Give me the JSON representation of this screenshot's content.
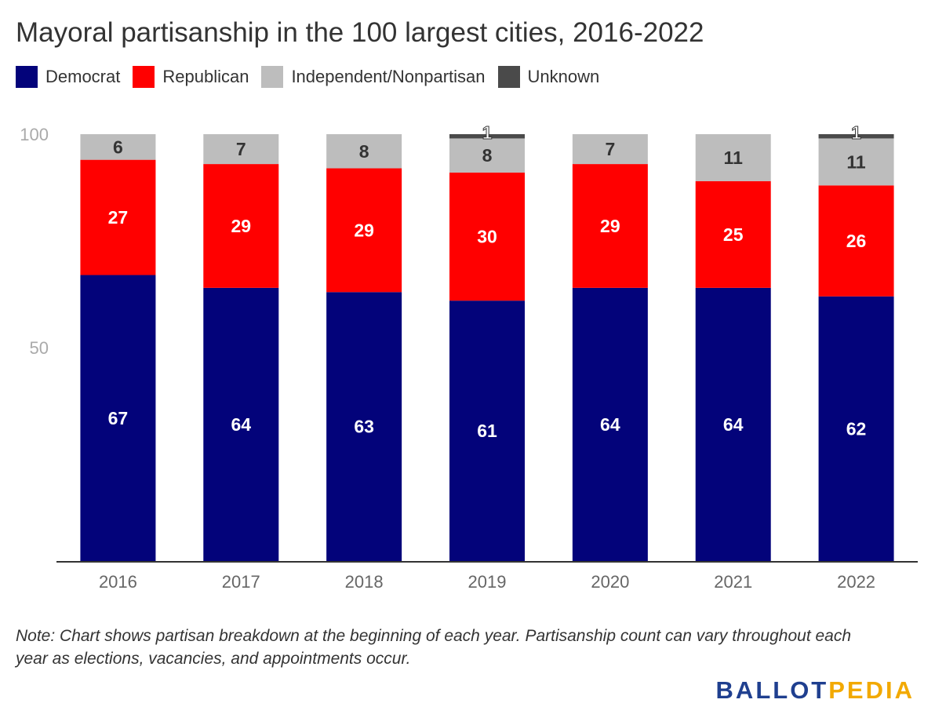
{
  "title": "Mayoral partisanship in the 100 largest cities, 2016-2022",
  "colors": {
    "democrat": "#03037a",
    "republican": "#ff0000",
    "independent": "#bdbdbd",
    "unknown": "#4a4a4a"
  },
  "legend": [
    {
      "label": "Democrat",
      "color": "#03037a"
    },
    {
      "label": "Republican",
      "color": "#ff0000"
    },
    {
      "label": "Independent/Nonpartisan",
      "color": "#bdbdbd"
    },
    {
      "label": "Unknown",
      "color": "#4a4a4a"
    }
  ],
  "chart_data": {
    "type": "bar",
    "stacked": true,
    "categories": [
      "2016",
      "2017",
      "2018",
      "2019",
      "2020",
      "2021",
      "2022"
    ],
    "series": [
      {
        "name": "Democrat",
        "color": "#03037a",
        "values": [
          67,
          64,
          63,
          61,
          64,
          64,
          62
        ]
      },
      {
        "name": "Republican",
        "color": "#ff0000",
        "values": [
          27,
          29,
          29,
          30,
          29,
          25,
          26
        ]
      },
      {
        "name": "Independent/Nonpartisan",
        "color": "#bdbdbd",
        "values": [
          6,
          7,
          8,
          8,
          7,
          11,
          11
        ]
      },
      {
        "name": "Unknown",
        "color": "#4a4a4a",
        "values": [
          0,
          0,
          0,
          1,
          0,
          0,
          1
        ]
      }
    ],
    "yticks": [
      50,
      100
    ],
    "ylim": [
      0,
      100
    ],
    "grid": false,
    "legend_position": "top-left"
  },
  "note": "Note: Chart shows partisan breakdown at the beginning of each year. Partisanship count can vary throughout each year as elections, vacancies, and appointments occur.",
  "logo": {
    "part1": "BALLOT",
    "part2": "PEDIA"
  }
}
